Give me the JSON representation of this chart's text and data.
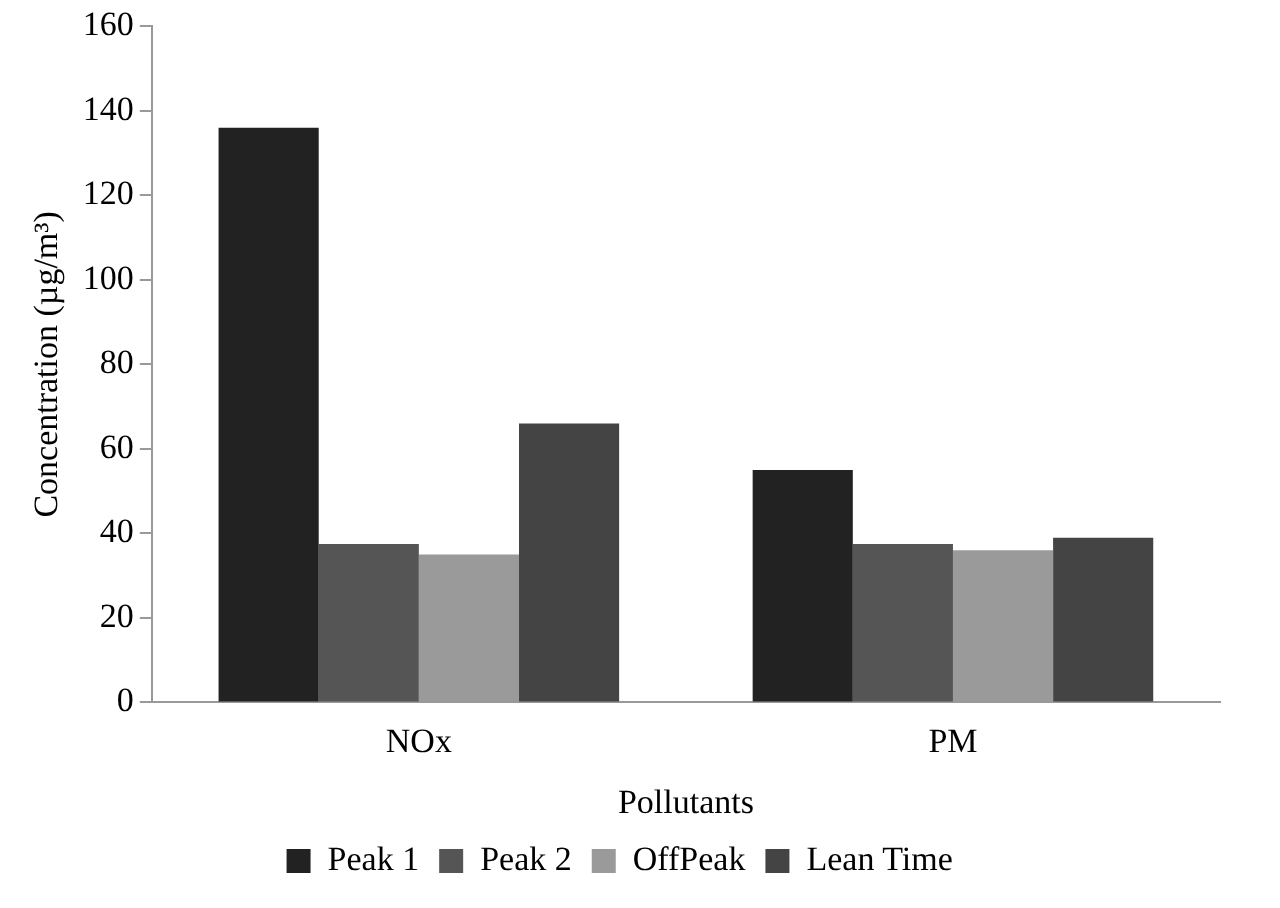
{
  "chart_data": {
    "type": "bar",
    "xlabel": "Pollutants",
    "ylabel": "Concentration (µg/m³)",
    "categories": [
      "NOx",
      "PM"
    ],
    "series": [
      {
        "name": "Peak 1",
        "color": "#222222",
        "values": [
          136,
          55
        ]
      },
      {
        "name": "Peak 2",
        "color": "#555555",
        "values": [
          37.5,
          37.5
        ]
      },
      {
        "name": "OffPeak",
        "color": "#9a9a9a",
        "values": [
          35,
          36
        ]
      },
      {
        "name": "Lean Time",
        "color": "#444444",
        "values": [
          66,
          39
        ]
      }
    ],
    "ylim": [
      0,
      160
    ],
    "yticks": [
      0,
      20,
      40,
      60,
      80,
      100,
      120,
      140,
      160
    ],
    "grid": false,
    "legend": "bottom"
  }
}
